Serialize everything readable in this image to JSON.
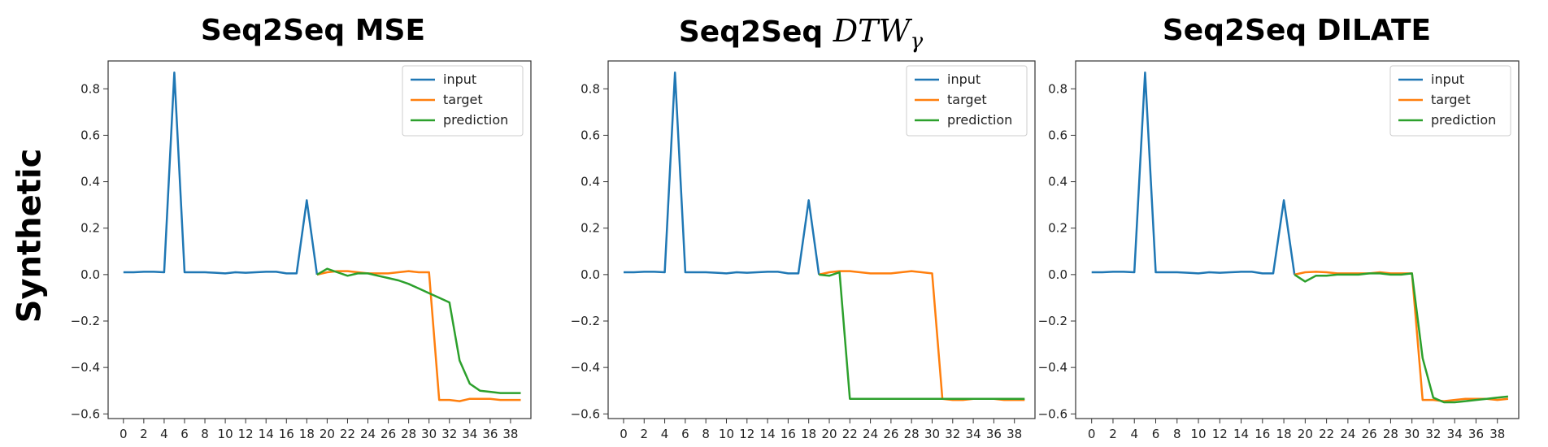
{
  "row_label": "Synthetic",
  "chart_data": [
    {
      "type": "line",
      "title": "Seq2Seq MSE",
      "title_parts": {
        "text": "Seq2Seq MSE",
        "math": "",
        "math_sub": ""
      },
      "xlabel": "",
      "ylabel": "",
      "xlim": [
        -1.5,
        40
      ],
      "ylim": [
        -0.62,
        0.92
      ],
      "xticks": [
        0,
        2,
        4,
        6,
        8,
        10,
        12,
        14,
        16,
        18,
        20,
        22,
        24,
        26,
        28,
        30,
        32,
        34,
        36,
        38
      ],
      "yticks": [
        -0.6,
        -0.4,
        -0.2,
        0.0,
        0.2,
        0.4,
        0.6,
        0.8
      ],
      "ytick_labels": [
        "−0.6",
        "−0.4",
        "−0.2",
        "0.0",
        "0.2",
        "0.4",
        "0.6",
        "0.8"
      ],
      "grid": false,
      "legend": "top-right",
      "series": [
        {
          "name": "input",
          "color": "#1f77b4",
          "x": [
            0,
            1,
            2,
            3,
            4,
            5,
            6,
            7,
            8,
            9,
            10,
            11,
            12,
            13,
            14,
            15,
            16,
            17,
            18,
            19
          ],
          "y": [
            0.01,
            0.01,
            0.012,
            0.012,
            0.01,
            0.87,
            0.01,
            0.01,
            0.01,
            0.008,
            0.005,
            0.01,
            0.008,
            0.01,
            0.012,
            0.012,
            0.005,
            0.005,
            0.32,
            0.0
          ]
        },
        {
          "name": "target",
          "color": "#ff7f0e",
          "x": [
            19,
            20,
            21,
            22,
            23,
            24,
            25,
            26,
            27,
            28,
            29,
            30,
            31,
            32,
            33,
            34,
            35,
            36,
            37,
            38,
            39
          ],
          "y": [
            0.0,
            0.01,
            0.015,
            0.015,
            0.01,
            0.005,
            0.005,
            0.005,
            0.01,
            0.015,
            0.01,
            0.01,
            -0.54,
            -0.54,
            -0.545,
            -0.535,
            -0.535,
            -0.535,
            -0.54,
            -0.54,
            -0.54
          ]
        },
        {
          "name": "prediction",
          "color": "#2ca02c",
          "x": [
            19,
            20,
            21,
            22,
            23,
            24,
            25,
            26,
            27,
            28,
            29,
            30,
            31,
            32,
            33,
            34,
            35,
            36,
            37,
            38,
            39
          ],
          "y": [
            0.0,
            0.025,
            0.01,
            -0.005,
            0.005,
            0.005,
            -0.005,
            -0.015,
            -0.025,
            -0.04,
            -0.06,
            -0.08,
            -0.1,
            -0.12,
            -0.37,
            -0.47,
            -0.5,
            -0.505,
            -0.51,
            -0.51,
            -0.51
          ]
        }
      ]
    },
    {
      "type": "line",
      "title": "Seq2Seq DTWγ",
      "title_parts": {
        "text": "Seq2Seq",
        "math": "DTW",
        "math_sub": "γ"
      },
      "xlabel": "",
      "ylabel": "",
      "xlim": [
        -1.5,
        40
      ],
      "ylim": [
        -0.62,
        0.92
      ],
      "xticks": [
        0,
        2,
        4,
        6,
        8,
        10,
        12,
        14,
        16,
        18,
        20,
        22,
        24,
        26,
        28,
        30,
        32,
        34,
        36,
        38
      ],
      "yticks": [
        -0.6,
        -0.4,
        -0.2,
        0.0,
        0.2,
        0.4,
        0.6,
        0.8
      ],
      "ytick_labels": [
        "−0.6",
        "−0.4",
        "−0.2",
        "0.0",
        "0.2",
        "0.4",
        "0.6",
        "0.8"
      ],
      "grid": false,
      "legend": "top-right",
      "series": [
        {
          "name": "input",
          "color": "#1f77b4",
          "x": [
            0,
            1,
            2,
            3,
            4,
            5,
            6,
            7,
            8,
            9,
            10,
            11,
            12,
            13,
            14,
            15,
            16,
            17,
            18,
            19
          ],
          "y": [
            0.01,
            0.01,
            0.012,
            0.012,
            0.01,
            0.87,
            0.01,
            0.01,
            0.01,
            0.008,
            0.005,
            0.01,
            0.008,
            0.01,
            0.012,
            0.012,
            0.005,
            0.005,
            0.32,
            0.0
          ]
        },
        {
          "name": "target",
          "color": "#ff7f0e",
          "x": [
            19,
            20,
            21,
            22,
            23,
            24,
            25,
            26,
            27,
            28,
            29,
            30,
            31,
            32,
            33,
            34,
            35,
            36,
            37,
            38,
            39
          ],
          "y": [
            0.0,
            0.01,
            0.015,
            0.015,
            0.01,
            0.005,
            0.005,
            0.005,
            0.01,
            0.015,
            0.01,
            0.005,
            -0.535,
            -0.54,
            -0.54,
            -0.535,
            -0.535,
            -0.535,
            -0.54,
            -0.54,
            -0.54
          ]
        },
        {
          "name": "prediction",
          "color": "#2ca02c",
          "x": [
            19,
            20,
            21,
            22,
            23,
            24,
            25,
            26,
            27,
            28,
            29,
            30,
            31,
            32,
            33,
            34,
            35,
            36,
            37,
            38,
            39
          ],
          "y": [
            0.0,
            -0.005,
            0.01,
            -0.535,
            -0.535,
            -0.535,
            -0.535,
            -0.535,
            -0.535,
            -0.535,
            -0.535,
            -0.535,
            -0.535,
            -0.535,
            -0.535,
            -0.535,
            -0.535,
            -0.535,
            -0.535,
            -0.535,
            -0.535
          ]
        }
      ]
    },
    {
      "type": "line",
      "title": "Seq2Seq DILATE",
      "title_parts": {
        "text": "Seq2Seq DILATE",
        "math": "",
        "math_sub": ""
      },
      "xlabel": "",
      "ylabel": "",
      "xlim": [
        -1.5,
        40
      ],
      "ylim": [
        -0.62,
        0.92
      ],
      "xticks": [
        0,
        2,
        4,
        6,
        8,
        10,
        12,
        14,
        16,
        18,
        20,
        22,
        24,
        26,
        28,
        30,
        32,
        34,
        36,
        38
      ],
      "yticks": [
        -0.6,
        -0.4,
        -0.2,
        0.0,
        0.2,
        0.4,
        0.6,
        0.8
      ],
      "ytick_labels": [
        "−0.6",
        "−0.4",
        "−0.2",
        "0.0",
        "0.2",
        "0.4",
        "0.6",
        "0.8"
      ],
      "grid": false,
      "legend": "top-right",
      "series": [
        {
          "name": "input",
          "color": "#1f77b4",
          "x": [
            0,
            1,
            2,
            3,
            4,
            5,
            6,
            7,
            8,
            9,
            10,
            11,
            12,
            13,
            14,
            15,
            16,
            17,
            18,
            19
          ],
          "y": [
            0.01,
            0.01,
            0.012,
            0.012,
            0.01,
            0.87,
            0.01,
            0.01,
            0.01,
            0.008,
            0.005,
            0.01,
            0.008,
            0.01,
            0.012,
            0.012,
            0.005,
            0.005,
            0.32,
            0.0
          ]
        },
        {
          "name": "target",
          "color": "#ff7f0e",
          "x": [
            19,
            20,
            21,
            22,
            23,
            24,
            25,
            26,
            27,
            28,
            29,
            30,
            31,
            32,
            33,
            34,
            35,
            36,
            37,
            38,
            39
          ],
          "y": [
            0.0,
            0.01,
            0.012,
            0.01,
            0.005,
            0.005,
            0.005,
            0.005,
            0.01,
            0.005,
            0.005,
            0.005,
            -0.54,
            -0.54,
            -0.545,
            -0.54,
            -0.535,
            -0.535,
            -0.535,
            -0.54,
            -0.535
          ]
        },
        {
          "name": "prediction",
          "color": "#2ca02c",
          "x": [
            19,
            20,
            21,
            22,
            23,
            24,
            25,
            26,
            27,
            28,
            29,
            30,
            31,
            32,
            33,
            34,
            35,
            36,
            37,
            38,
            39
          ],
          "y": [
            0.0,
            -0.03,
            -0.005,
            -0.005,
            0.0,
            0.0,
            0.0,
            0.005,
            0.005,
            0.0,
            0.0,
            0.005,
            -0.36,
            -0.53,
            -0.55,
            -0.55,
            -0.545,
            -0.54,
            -0.535,
            -0.53,
            -0.525
          ]
        }
      ]
    }
  ]
}
